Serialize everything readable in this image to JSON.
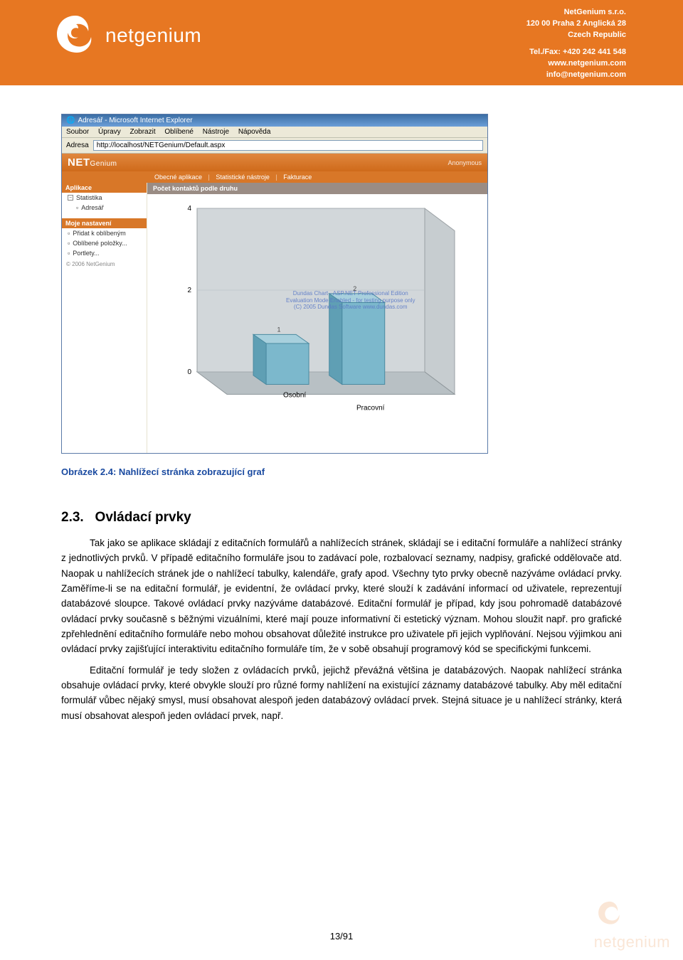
{
  "header": {
    "brand": "netgenium",
    "company": "NetGenium s.r.o.",
    "addr1": "120 00 Praha 2 Anglická 28",
    "addr2": "Czech Republic",
    "tel": "Tel./Fax: +420 242 441 548",
    "web": "www.netgenium.com",
    "mail": "info@netgenium.com",
    "logo_colors": {
      "swirl": "#ffffff",
      "bg": "#e77722"
    }
  },
  "screenshot": {
    "window_title": "Adresář - Microsoft Internet Explorer",
    "menu": [
      "Soubor",
      "Úpravy",
      "Zobrazit",
      "Oblíbené",
      "Nástroje",
      "Nápověda"
    ],
    "addr_label": "Adresa",
    "url": "http://localhost/NETGenium/Default.aspx",
    "app_brand": "NET",
    "app_brand_sub": "Genium",
    "anon": "Anonymous",
    "tabs": [
      "Obecné aplikace",
      "Statistické nástroje",
      "Fakturace"
    ],
    "sidebar": {
      "sec1_title": "Aplikace",
      "sec1_items": [
        "Statistika",
        "Adresář"
      ],
      "sec2_title": "Moje nastavení",
      "sec2_items": [
        "Přidat k oblíbeným",
        "Oblíbené položky...",
        "Portlety..."
      ],
      "copyright": "© 2006 NetGenium"
    },
    "chart": {
      "title": "Počet kontaktů podle druhu",
      "type": "3d-bar",
      "categories": [
        "Osobní",
        "Pracovní"
      ],
      "values": [
        1,
        2
      ],
      "yticks": [
        0,
        2,
        4
      ],
      "ylim": [
        0,
        4
      ],
      "bar_color": "#7cb8cc",
      "bar_edge": "#4a8aa0",
      "floor_color": "#b8c0c4",
      "wall_color": "#d2d7da",
      "watermark_lines": [
        "Dundas Chart - ASP.NET Professional Edition",
        "Evaluation Mode Enabled - for testing purpose only",
        "(C) 2005 Dundas Software  www.dundas.com"
      ]
    }
  },
  "caption": "Obrázek 2.4: Nahlížecí stránka zobrazující graf",
  "section": {
    "num": "2.3.",
    "title": "Ovládací prvky",
    "para1": "Tak jako se aplikace skládají z editačních formulářů a nahlížecích stránek, skládají se i editační formuláře a nahlížecí stránky z jednotlivých prvků. V případě editačního formuláře jsou to zadávací pole, rozbalovací seznamy, nadpisy, grafické oddělovače atd. Naopak u nahlížecích stránek jde o nahlížecí tabulky, kalendáře, grafy apod. Všechny tyto prvky obecně nazýváme ovládací prvky. Zaměříme-li se na editační formulář, je evidentní, že ovládací prvky, které slouží k zadávání informací od uživatele, reprezentují databázové sloupce. Takové ovládací prvky nazýváme databázové. Editační formulář je případ, kdy jsou pohromadě databázové ovládací prvky současně s běžnými vizuálními, které mají pouze informativní či estetický význam. Mohou sloužit např. pro grafické zpřehlednění editačního formuláře nebo mohou obsahovat důležité instrukce pro uživatele při jejich vyplňování. Nejsou výjimkou ani ovládací prvky zajišťující interaktivitu editačního formuláře tím, že v sobě obsahují programový kód se specifickými funkcemi.",
    "para2": "Editační formulář je tedy složen z ovládacích prvků, jejichž převážná většina je databázových. Naopak nahlížecí stránka obsahuje ovládací prvky, které obvykle slouží pro různé formy nahlížení na existující záznamy databázové tabulky. Aby měl editační formulář vůbec nějaký smysl, musí obsahovat alespoň jeden databázový ovládací prvek. Stejná situace je u nahlížecí stránky, která musí obsahovat alespoň jeden ovládací prvek, např."
  },
  "page_number": "13/91",
  "watermark_corner": "netgenium"
}
